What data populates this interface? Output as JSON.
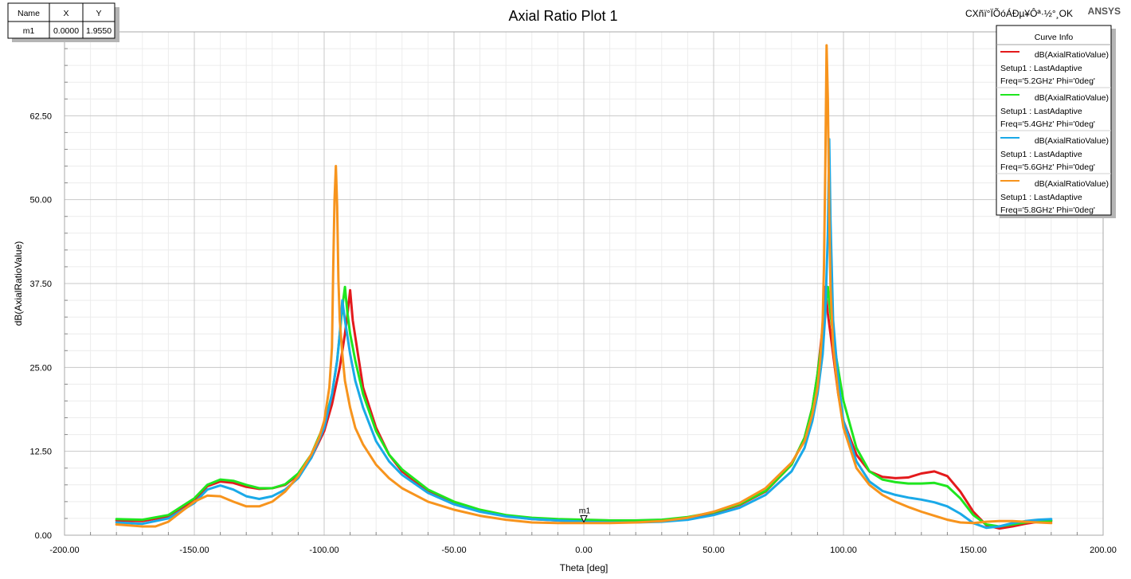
{
  "header": {
    "title": "Axial Ratio Plot 1",
    "status_text": "CXñï°ÏÕóÁÐµ¥Ôª·½°¸OK",
    "brand": "ANSYS"
  },
  "marker_table": {
    "headers": [
      "Name",
      "X",
      "Y"
    ],
    "rows": [
      [
        "m1",
        "0.0000",
        "1.9550"
      ]
    ]
  },
  "marker": {
    "name": "m1",
    "x": 0,
    "y": 1.955
  },
  "legend": {
    "title": "Curve Info",
    "setup": "Setup1 : LastAdaptive"
  },
  "chart_data": {
    "type": "line",
    "xlabel": "Theta [deg]",
    "ylabel": "dB(AxialRatioValue)",
    "xlim": [
      -200,
      200
    ],
    "ylim": [
      0,
      75
    ],
    "xticks": [
      -200,
      -150,
      -100,
      -50,
      0,
      50,
      100,
      150,
      200
    ],
    "xtick_labels": [
      "-200.00",
      "-150.00",
      "-100.00",
      "-50.00",
      "0.00",
      "50.00",
      "100.00",
      "150.00",
      "200.00"
    ],
    "yticks": [
      0,
      12.5,
      25,
      37.5,
      50,
      62.5
    ],
    "ytick_labels": [
      "0.00",
      "12.50",
      "25.00",
      "37.50",
      "50.00",
      "62.50"
    ],
    "grid": true,
    "legend_position": "top-right",
    "series": [
      {
        "name": "dB(AxialRatioValue)",
        "freq": "Freq='5.2GHz' Phi='0deg'",
        "color": "#e31a1c",
        "points": [
          [
            -180,
            2.2
          ],
          [
            -170,
            2.1
          ],
          [
            -160,
            2.8
          ],
          [
            -150,
            5.2
          ],
          [
            -145,
            7.3
          ],
          [
            -140,
            8.0
          ],
          [
            -135,
            7.8
          ],
          [
            -130,
            7.2
          ],
          [
            -125,
            6.9
          ],
          [
            -120,
            7.0
          ],
          [
            -115,
            7.5
          ],
          [
            -110,
            9.0
          ],
          [
            -105,
            11.5
          ],
          [
            -100,
            15.5
          ],
          [
            -97,
            19.5
          ],
          [
            -94,
            25.0
          ],
          [
            -92,
            30.0
          ],
          [
            -91,
            33.0
          ],
          [
            -90,
            36.5
          ],
          [
            -89,
            32.0
          ],
          [
            -87,
            27.0
          ],
          [
            -85,
            22.0
          ],
          [
            -80,
            16.0
          ],
          [
            -75,
            12.0
          ],
          [
            -70,
            9.5
          ],
          [
            -60,
            6.5
          ],
          [
            -50,
            4.8
          ],
          [
            -40,
            3.6
          ],
          [
            -30,
            2.9
          ],
          [
            -20,
            2.4
          ],
          [
            -10,
            2.2
          ],
          [
            0,
            2.0
          ],
          [
            10,
            2.0
          ],
          [
            20,
            2.1
          ],
          [
            30,
            2.2
          ],
          [
            40,
            2.6
          ],
          [
            50,
            3.3
          ],
          [
            60,
            4.5
          ],
          [
            70,
            6.5
          ],
          [
            80,
            10.5
          ],
          [
            85,
            14.5
          ],
          [
            88,
            19.0
          ],
          [
            90,
            24.0
          ],
          [
            92,
            31.0
          ],
          [
            93,
            37.0
          ],
          [
            94,
            33.0
          ],
          [
            95,
            30.0
          ],
          [
            96,
            27.0
          ],
          [
            98,
            21.0
          ],
          [
            100,
            17.0
          ],
          [
            105,
            12.0
          ],
          [
            110,
            9.5
          ],
          [
            115,
            8.7
          ],
          [
            120,
            8.5
          ],
          [
            125,
            8.6
          ],
          [
            130,
            9.2
          ],
          [
            135,
            9.5
          ],
          [
            140,
            8.8
          ],
          [
            145,
            6.5
          ],
          [
            150,
            3.5
          ],
          [
            155,
            1.5
          ],
          [
            160,
            1.0
          ],
          [
            165,
            1.3
          ],
          [
            170,
            1.7
          ],
          [
            175,
            2.0
          ],
          [
            180,
            2.1
          ]
        ]
      },
      {
        "name": "dB(AxialRatioValue)",
        "freq": "Freq='5.4GHz' Phi='0deg'",
        "color": "#1fe61f",
        "points": [
          [
            -180,
            2.4
          ],
          [
            -170,
            2.3
          ],
          [
            -160,
            3.0
          ],
          [
            -150,
            5.5
          ],
          [
            -145,
            7.5
          ],
          [
            -140,
            8.3
          ],
          [
            -135,
            8.1
          ],
          [
            -130,
            7.5
          ],
          [
            -125,
            7.0
          ],
          [
            -120,
            7.0
          ],
          [
            -115,
            7.6
          ],
          [
            -110,
            9.2
          ],
          [
            -105,
            12.0
          ],
          [
            -100,
            16.5
          ],
          [
            -97,
            21.0
          ],
          [
            -95,
            26.0
          ],
          [
            -94,
            30.0
          ],
          [
            -93,
            34.0
          ],
          [
            -92,
            37.0
          ],
          [
            -91,
            33.0
          ],
          [
            -90,
            30.0
          ],
          [
            -88,
            26.0
          ],
          [
            -85,
            21.0
          ],
          [
            -80,
            15.5
          ],
          [
            -75,
            12.0
          ],
          [
            -70,
            9.8
          ],
          [
            -60,
            6.8
          ],
          [
            -50,
            5.0
          ],
          [
            -40,
            3.8
          ],
          [
            -30,
            3.0
          ],
          [
            -20,
            2.6
          ],
          [
            -10,
            2.4
          ],
          [
            0,
            2.3
          ],
          [
            10,
            2.2
          ],
          [
            20,
            2.2
          ],
          [
            30,
            2.3
          ],
          [
            40,
            2.7
          ],
          [
            50,
            3.4
          ],
          [
            60,
            4.6
          ],
          [
            70,
            6.6
          ],
          [
            80,
            10.5
          ],
          [
            85,
            14.5
          ],
          [
            88,
            19.0
          ],
          [
            90,
            24.0
          ],
          [
            92,
            30.0
          ],
          [
            93,
            34.0
          ],
          [
            94,
            37.0
          ],
          [
            95,
            33.0
          ],
          [
            97,
            27.0
          ],
          [
            100,
            20.0
          ],
          [
            105,
            13.0
          ],
          [
            110,
            9.5
          ],
          [
            115,
            8.3
          ],
          [
            120,
            7.9
          ],
          [
            125,
            7.7
          ],
          [
            130,
            7.7
          ],
          [
            135,
            7.8
          ],
          [
            140,
            7.3
          ],
          [
            145,
            5.5
          ],
          [
            150,
            3.0
          ],
          [
            155,
            1.6
          ],
          [
            160,
            1.3
          ],
          [
            165,
            1.6
          ],
          [
            170,
            1.9
          ],
          [
            175,
            2.1
          ],
          [
            180,
            2.2
          ]
        ]
      },
      {
        "name": "dB(AxialRatioValue)",
        "freq": "Freq='5.6GHz' Phi='0deg'",
        "color": "#1aa9e8",
        "points": [
          [
            -180,
            1.9
          ],
          [
            -170,
            1.7
          ],
          [
            -160,
            2.5
          ],
          [
            -150,
            4.8
          ],
          [
            -145,
            6.8
          ],
          [
            -140,
            7.4
          ],
          [
            -135,
            6.8
          ],
          [
            -130,
            5.8
          ],
          [
            -125,
            5.4
          ],
          [
            -120,
            5.8
          ],
          [
            -115,
            6.8
          ],
          [
            -110,
            8.5
          ],
          [
            -105,
            11.5
          ],
          [
            -100,
            16.0
          ],
          [
            -97,
            21.0
          ],
          [
            -95,
            26.0
          ],
          [
            -94,
            30.0
          ],
          [
            -93,
            35.0
          ],
          [
            -92,
            32.0
          ],
          [
            -90,
            27.0
          ],
          [
            -88,
            23.0
          ],
          [
            -85,
            19.0
          ],
          [
            -80,
            14.0
          ],
          [
            -75,
            11.0
          ],
          [
            -70,
            9.0
          ],
          [
            -60,
            6.3
          ],
          [
            -50,
            4.6
          ],
          [
            -40,
            3.5
          ],
          [
            -30,
            2.8
          ],
          [
            -20,
            2.4
          ],
          [
            -10,
            2.2
          ],
          [
            0,
            2.0
          ],
          [
            10,
            1.9
          ],
          [
            20,
            1.9
          ],
          [
            30,
            2.0
          ],
          [
            40,
            2.3
          ],
          [
            50,
            3.0
          ],
          [
            60,
            4.1
          ],
          [
            70,
            6.0
          ],
          [
            80,
            9.5
          ],
          [
            85,
            13.0
          ],
          [
            88,
            17.0
          ],
          [
            90,
            21.0
          ],
          [
            92,
            27.0
          ],
          [
            93,
            33.0
          ],
          [
            94,
            45.0
          ],
          [
            94.5,
            59.0
          ],
          [
            95,
            47.0
          ],
          [
            96,
            32.0
          ],
          [
            98,
            23.0
          ],
          [
            100,
            17.0
          ],
          [
            105,
            11.0
          ],
          [
            110,
            8.0
          ],
          [
            115,
            6.6
          ],
          [
            120,
            6.0
          ],
          [
            125,
            5.6
          ],
          [
            130,
            5.3
          ],
          [
            135,
            4.9
          ],
          [
            140,
            4.3
          ],
          [
            145,
            3.2
          ],
          [
            150,
            1.8
          ],
          [
            155,
            1.1
          ],
          [
            160,
            1.3
          ],
          [
            165,
            1.8
          ],
          [
            170,
            2.1
          ],
          [
            175,
            2.3
          ],
          [
            180,
            2.4
          ]
        ]
      },
      {
        "name": "dB(AxialRatioValue)",
        "freq": "Freq='5.8GHz' Phi='0deg'",
        "color": "#f7941d",
        "points": [
          [
            -180,
            1.6
          ],
          [
            -170,
            1.3
          ],
          [
            -165,
            1.3
          ],
          [
            -160,
            2.0
          ],
          [
            -155,
            3.5
          ],
          [
            -150,
            5.0
          ],
          [
            -145,
            5.9
          ],
          [
            -140,
            5.8
          ],
          [
            -135,
            5.0
          ],
          [
            -130,
            4.3
          ],
          [
            -125,
            4.3
          ],
          [
            -120,
            5.0
          ],
          [
            -115,
            6.5
          ],
          [
            -110,
            8.8
          ],
          [
            -105,
            12.0
          ],
          [
            -102,
            14.5
          ],
          [
            -100,
            17.0
          ],
          [
            -98,
            22.0
          ],
          [
            -97,
            28.0
          ],
          [
            -96.5,
            40.0
          ],
          [
            -96,
            50.0
          ],
          [
            -95.5,
            55.0
          ],
          [
            -95,
            49.0
          ],
          [
            -94.5,
            38.0
          ],
          [
            -94,
            32.0
          ],
          [
            -93,
            27.0
          ],
          [
            -92,
            23.0
          ],
          [
            -90,
            19.0
          ],
          [
            -88,
            16.0
          ],
          [
            -85,
            13.5
          ],
          [
            -80,
            10.5
          ],
          [
            -75,
            8.5
          ],
          [
            -70,
            7.0
          ],
          [
            -60,
            5.0
          ],
          [
            -50,
            3.8
          ],
          [
            -40,
            2.9
          ],
          [
            -30,
            2.3
          ],
          [
            -20,
            1.9
          ],
          [
            -10,
            1.8
          ],
          [
            0,
            1.8
          ],
          [
            10,
            1.8
          ],
          [
            20,
            1.9
          ],
          [
            30,
            2.1
          ],
          [
            40,
            2.6
          ],
          [
            50,
            3.5
          ],
          [
            60,
            4.8
          ],
          [
            70,
            7.0
          ],
          [
            80,
            10.8
          ],
          [
            85,
            14.0
          ],
          [
            88,
            18.0
          ],
          [
            90,
            22.0
          ],
          [
            91,
            26.0
          ],
          [
            92,
            32.0
          ],
          [
            92.5,
            40.0
          ],
          [
            93,
            55.0
          ],
          [
            93.5,
            73.0
          ],
          [
            94,
            65.0
          ],
          [
            94.5,
            48.0
          ],
          [
            95,
            37.0
          ],
          [
            96,
            28.0
          ],
          [
            98,
            21.0
          ],
          [
            100,
            16.0
          ],
          [
            105,
            10.0
          ],
          [
            110,
            7.5
          ],
          [
            115,
            6.0
          ],
          [
            120,
            5.0
          ],
          [
            125,
            4.2
          ],
          [
            130,
            3.5
          ],
          [
            135,
            2.9
          ],
          [
            140,
            2.3
          ],
          [
            145,
            1.9
          ],
          [
            150,
            1.8
          ],
          [
            155,
            2.0
          ],
          [
            160,
            2.1
          ],
          [
            165,
            2.1
          ],
          [
            170,
            2.0
          ],
          [
            175,
            1.9
          ],
          [
            180,
            1.8
          ]
        ]
      }
    ]
  }
}
